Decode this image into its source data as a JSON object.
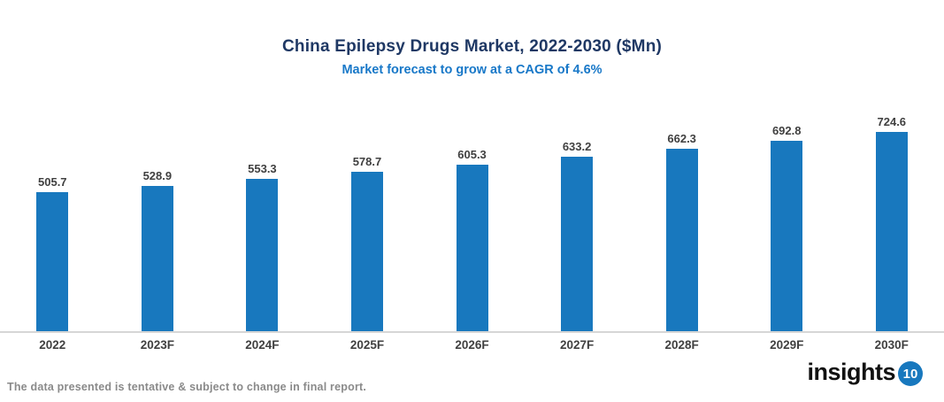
{
  "header": {
    "title": "China Epilepsy Drugs Market, 2022-2030 ($Mn)",
    "subtitle": "Market forecast to grow at a CAGR of 4.6%"
  },
  "chart_data": {
    "type": "bar",
    "title": "China Epilepsy Drugs Market, 2022-2030 ($Mn)",
    "subtitle": "Market forecast to grow at a CAGR of 4.6%",
    "categories": [
      "2022",
      "2023F",
      "2024F",
      "2025F",
      "2026F",
      "2027F",
      "2028F",
      "2029F",
      "2030F"
    ],
    "values": [
      505.7,
      528.9,
      553.3,
      578.7,
      605.3,
      633.2,
      662.3,
      692.8,
      724.6
    ],
    "xlabel": "",
    "ylabel": "",
    "ylim": [
      0,
      760
    ],
    "grid": false,
    "legend": false,
    "data_labels": true,
    "bar_color": "#1878be"
  },
  "footer": {
    "disclaimer": "The data presented is tentative & subject to change in final report.",
    "logo_text": "insights",
    "logo_badge": "10"
  },
  "colors": {
    "title": "#1f3864",
    "subtitle": "#1878c8",
    "bar": "#1878be",
    "axis_line": "#d6d6d6",
    "value_label": "#404040",
    "axis_label": "#404040",
    "disclaimer": "#8a8a8a"
  }
}
